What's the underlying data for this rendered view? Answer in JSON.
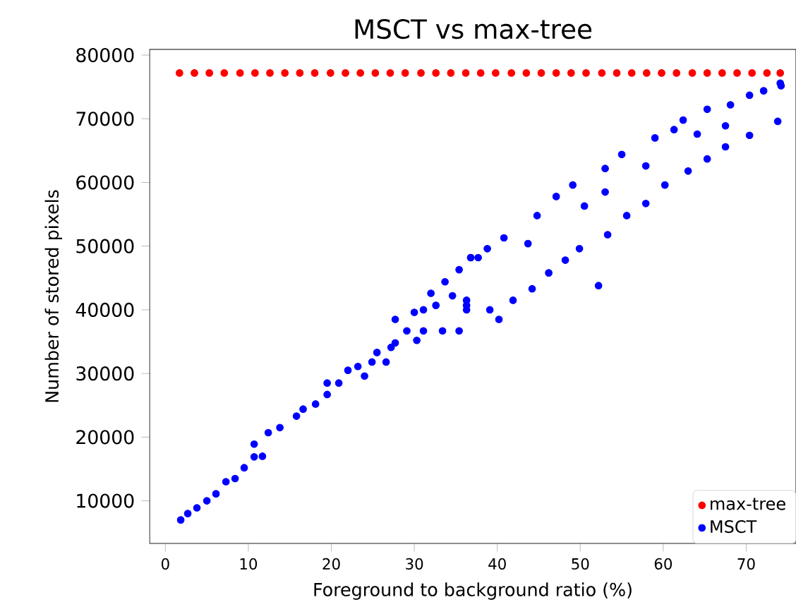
{
  "chart_data": {
    "type": "scatter",
    "title": "MSCT vs max-tree",
    "xlabel": "Foreground to background ratio (%)",
    "ylabel": "Number of stored pixels",
    "xlim": [
      -1.9,
      76
    ],
    "ylim": [
      3300,
      80900
    ],
    "xticks": [
      0,
      10,
      20,
      30,
      40,
      50,
      60,
      70
    ],
    "yticks": [
      10000,
      20000,
      30000,
      40000,
      50000,
      60000,
      70000,
      80000
    ],
    "legend": "bottom right",
    "marker": "circle",
    "grid": false,
    "series": [
      {
        "name": "max-tree",
        "color": "#ff0000",
        "x": [
          1.7,
          3.5,
          5.3,
          7.1,
          9.0,
          10.8,
          12.6,
          14.4,
          16.2,
          18.0,
          19.9,
          21.7,
          23.5,
          25.3,
          27.1,
          28.9,
          30.8,
          32.6,
          34.4,
          36.2,
          38.0,
          39.8,
          41.7,
          43.5,
          45.3,
          47.1,
          48.9,
          50.7,
          52.6,
          54.4,
          56.2,
          58.0,
          59.8,
          61.6,
          63.5,
          65.3,
          67.1,
          68.9,
          70.7,
          72.5,
          74.1
        ],
        "values": [
          77200,
          77200,
          77200,
          77200,
          77200,
          77200,
          77200,
          77200,
          77200,
          77200,
          77200,
          77200,
          77200,
          77200,
          77200,
          77200,
          77200,
          77200,
          77200,
          77200,
          77200,
          77200,
          77200,
          77200,
          77200,
          77200,
          77200,
          77200,
          77200,
          77200,
          77200,
          77200,
          77200,
          77200,
          77200,
          77200,
          77200,
          77200,
          77200,
          77200,
          77200
        ]
      },
      {
        "name": "MSCT",
        "color": "#0000ff",
        "x": [
          1.85,
          2.7,
          3.8,
          5.0,
          6.1,
          7.3,
          8.4,
          9.5,
          10.7,
          10.7,
          11.7,
          12.4,
          13.8,
          15.8,
          16.6,
          18.1,
          19.5,
          19.5,
          20.9,
          22.0,
          23.2,
          24.0,
          24.9,
          25.5,
          26.6,
          27.2,
          27.7,
          27.7,
          29.1,
          30.3,
          30.0,
          31.1,
          31.1,
          32.0,
          32.6,
          33.4,
          33.7,
          34.6,
          35.4,
          35.4,
          36.3,
          36.8,
          37.7,
          36.3,
          36.3,
          39.1,
          40.2,
          41.9,
          44.2,
          46.2,
          48.2,
          49.9,
          52.2,
          53.3,
          55.6,
          57.9,
          60.2,
          63.0,
          65.3,
          67.5,
          70.4,
          73.8,
          36.8,
          38.8,
          40.8,
          43.7,
          44.8,
          47.1,
          49.1,
          50.5,
          53.0,
          53.0,
          55.0,
          57.9,
          59.0,
          61.3,
          62.4,
          64.1,
          65.3,
          67.5,
          68.1,
          70.4,
          72.1,
          74.1,
          74.2
        ],
        "values": [
          7000,
          8000,
          8900,
          10000,
          11100,
          13000,
          13500,
          15200,
          16900,
          18900,
          17000,
          20700,
          21500,
          23300,
          24400,
          25200,
          26700,
          28500,
          28500,
          30500,
          31100,
          29600,
          31800,
          33300,
          31800,
          34100,
          34800,
          38500,
          36700,
          35200,
          39600,
          40000,
          36700,
          42600,
          40700,
          36700,
          44400,
          42200,
          36700,
          46300,
          41500,
          48200,
          48200,
          40000,
          40700,
          40000,
          38500,
          41500,
          43300,
          45800,
          47800,
          49600,
          43800,
          51800,
          54800,
          56700,
          59600,
          61800,
          63700,
          65600,
          67400,
          69600,
          48200,
          49600,
          51300,
          50400,
          54800,
          57800,
          59600,
          56300,
          62200,
          58500,
          64400,
          62600,
          67000,
          68300,
          69800,
          67600,
          71500,
          68900,
          72200,
          73700,
          74400,
          75600,
          75200
        ]
      }
    ]
  }
}
